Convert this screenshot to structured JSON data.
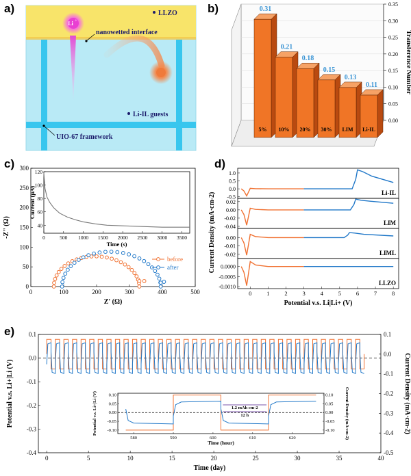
{
  "panel_letters": {
    "a": "a)",
    "b": "b)",
    "c": "c)",
    "d": "d)",
    "e": "e)"
  },
  "colors": {
    "orange": "#f07030",
    "blue": "#1f77c8",
    "gray": "#777777",
    "sky": "#b9eaf6",
    "yellow": "#f8e46a",
    "cyan_bar": "#38c6ee"
  },
  "schematic": {
    "llzo": "LLZO",
    "li_ion": "Li",
    "li_ion_sup": "+",
    "interface": "nanowetted interface",
    "guests": "Li-IL guests",
    "framework": "UIO-67 framework"
  },
  "chart_data": [
    {
      "id": "b",
      "type": "bar",
      "categories": [
        "5%",
        "10%",
        "20%",
        "30%",
        "LIM",
        "Li-IL"
      ],
      "values": [
        0.31,
        0.21,
        0.18,
        0.15,
        0.13,
        0.11
      ],
      "data_labels": [
        "0.31",
        "0.21",
        "0.18",
        "0.15",
        "0.13",
        "0.11"
      ],
      "ylabel": "Transference Number",
      "ylim": [
        0,
        0.35
      ],
      "yticks": [
        "0.00",
        "0.05",
        "0.10",
        "0.15",
        "0.20",
        "0.25",
        "0.30",
        "0.35"
      ],
      "style": "3d"
    },
    {
      "id": "c",
      "type": "scatter",
      "xlabel": "Z' (Ω)",
      "ylabel": "-Z'' (Ω)",
      "xlim": [
        0,
        500
      ],
      "ylim": [
        0,
        300
      ],
      "xticks": [
        "0",
        "100",
        "200",
        "300",
        "400",
        "500"
      ],
      "yticks": [
        "0",
        "50",
        "100",
        "150",
        "200",
        "250",
        "300"
      ],
      "legend": "bottom-right",
      "series": [
        {
          "name": "before",
          "center": 200,
          "radius": 130,
          "tail_x": [
            330,
            345
          ],
          "tail_y": [
            14,
            14
          ]
        },
        {
          "name": "after",
          "center": 245,
          "radius": 150,
          "tail_x": [
            395,
            405
          ],
          "tail_y": [
            10,
            12
          ]
        }
      ],
      "inset": {
        "type": "line",
        "xlabel": "Time (s)",
        "ylabel": "Current (μA)",
        "xlim": [
          0,
          3700
        ],
        "ylim": [
          28,
          120
        ],
        "xticks": [
          "0",
          "500",
          "1000",
          "1500",
          "2000",
          "2500",
          "3000",
          "3500"
        ],
        "yticks": [
          "40",
          "60",
          "80",
          "100",
          "120"
        ],
        "x": [
          0,
          30,
          80,
          150,
          250,
          400,
          600,
          800,
          1000,
          1300,
          1600,
          2000,
          2500,
          3000,
          3500,
          3700
        ],
        "y": [
          118,
          95,
          82,
          74,
          66,
          58,
          52,
          48,
          45,
          42,
          40,
          39,
          38,
          37,
          37,
          37
        ]
      }
    },
    {
      "id": "d",
      "type": "line",
      "xlabel": "Potential v.s. Li|Li+ (V)",
      "ylabel": "Current Density (mA·cm-2)",
      "xlim": [
        -0.7,
        8.3
      ],
      "xticks": [
        "0",
        "1",
        "2",
        "3",
        "4",
        "5",
        "6",
        "7",
        "8"
      ],
      "subplots": [
        {
          "name": "Li-IL",
          "ylim": [
            -0.6,
            1.3
          ],
          "yticks": [
            "-0.5",
            "0.0",
            "0.5",
            "1.0"
          ],
          "peak_x": 6.0,
          "peak_y": 1.2,
          "end_y": 0.4,
          "dip_y": -0.45,
          "bump_y": 0.03
        },
        {
          "name": "LIM",
          "ylim": [
            -0.045,
            0.028
          ],
          "yticks": [
            "-0.04",
            "-0.02",
            "0.00",
            "0.02"
          ],
          "peak_x": 5.9,
          "peak_y": 0.026,
          "end_y": 0.016,
          "dip_y": -0.037,
          "bump_y": 0.004
        },
        {
          "name": "LIML",
          "ylim": [
            -0.025,
            0.011
          ],
          "yticks": [
            "-0.02",
            "-0.01",
            "0.00"
          ],
          "peak_x": 5.55,
          "peak_y": 0.006,
          "end_y": 0.002,
          "dip_y": -0.021,
          "bump_y": 0.004
        },
        {
          "name": "LLZO",
          "ylim": [
            -0.0011,
            0.0004
          ],
          "yticks": [
            "-0.0010",
            "-0.0005",
            "0.0000"
          ],
          "peak_x": 0.0,
          "peak_y": 0.0003,
          "end_y": 0.0,
          "dip_y": -0.00095,
          "bump_y": 0.00025
        }
      ]
    },
    {
      "id": "e",
      "type": "line",
      "xlabel": "Time (day)",
      "ylabel": "Potential v.s. Li+|Li (V)",
      "y2label": "Current Density (mA·cm-2)",
      "xlim": [
        -1,
        40
      ],
      "ylim": [
        -0.4,
        0.1
      ],
      "y2lim": [
        -0.5,
        0.1
      ],
      "xticks": [
        "0",
        "5",
        "10",
        "15",
        "20",
        "25",
        "30",
        "35",
        "40"
      ],
      "yticks": [
        "-0.4",
        "-0.3",
        "-0.2",
        "-0.1",
        "0.0",
        "0.1"
      ],
      "y2ticks": [
        "-0.5",
        "-0.4",
        "-0.3",
        "-0.2",
        "-0.1",
        "0.0",
        "0.1"
      ],
      "cycles": 37,
      "t_start": 0,
      "t_end": 38,
      "voltage_amp": 0.065,
      "current_amp": 0.075,
      "inset": {
        "xlabel": "Time (hour)",
        "ylabel": "Potential v.s. Li+|Li (V)",
        "y2label": "Current Density (mA·cm-2)",
        "xlim": [
          576,
          628
        ],
        "ylim": [
          -0.12,
          0.11
        ],
        "xticks": [
          "580",
          "590",
          "600",
          "610",
          "620"
        ],
        "yticks": [
          "-0.10",
          "-0.05",
          "0.00",
          "0.05",
          "0.10"
        ],
        "y2ticks": [
          "-0.10",
          "-0.05",
          "0.00",
          "0.05",
          "0.10"
        ],
        "edges": [
          578,
          590,
          602,
          614,
          626
        ],
        "annotation_current": "1.2 mAh cm-2",
        "annotation_time": "12 h"
      }
    }
  ]
}
